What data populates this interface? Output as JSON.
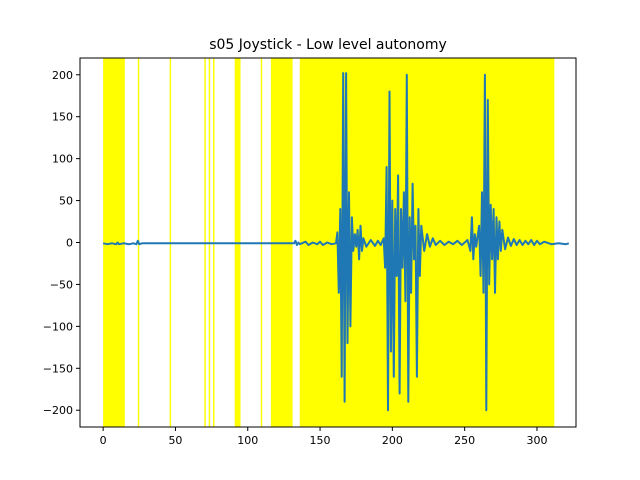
{
  "chart_data": {
    "type": "line",
    "title": "s05 Joystick - Low level autonomy",
    "xlabel": "",
    "ylabel": "",
    "xlim": [
      -16,
      327
    ],
    "ylim": [
      -220,
      220
    ],
    "x_ticks": [
      0,
      50,
      100,
      150,
      200,
      250,
      300
    ],
    "y_ticks": [
      -200,
      -150,
      -100,
      -50,
      0,
      50,
      100,
      150,
      200
    ],
    "grid": false,
    "legend": "none",
    "colors": {
      "line": "#1f77b4",
      "shade": "#ffff00"
    },
    "highlight_spans": [
      [
        0,
        15
      ],
      [
        24,
        25
      ],
      [
        46,
        47
      ],
      [
        70,
        71
      ],
      [
        73,
        74
      ],
      [
        76,
        77
      ],
      [
        91,
        95
      ],
      [
        109,
        110
      ],
      [
        116,
        131
      ],
      [
        136,
        312
      ]
    ],
    "series": [
      {
        "values": [
          [
            0,
            -1
          ],
          [
            3,
            -2
          ],
          [
            6,
            -1
          ],
          [
            9,
            -2
          ],
          [
            10,
            0
          ],
          [
            11,
            -2
          ],
          [
            14,
            -1
          ],
          [
            18,
            -2
          ],
          [
            21,
            -1
          ],
          [
            23,
            -2
          ],
          [
            24,
            2
          ],
          [
            25,
            -2
          ],
          [
            27,
            -1
          ],
          [
            40,
            -1
          ],
          [
            60,
            -1
          ],
          [
            80,
            -1
          ],
          [
            100,
            -1
          ],
          [
            120,
            -1
          ],
          [
            132,
            -1
          ],
          [
            133,
            2
          ],
          [
            134,
            -3
          ],
          [
            135,
            0
          ],
          [
            136,
            -2
          ],
          [
            140,
            1
          ],
          [
            142,
            -3
          ],
          [
            145,
            0
          ],
          [
            148,
            -2
          ],
          [
            150,
            1
          ],
          [
            152,
            -3
          ],
          [
            155,
            0
          ],
          [
            158,
            -2
          ],
          [
            161,
            -1
          ],
          [
            162,
            12
          ],
          [
            163,
            -60
          ],
          [
            164,
            40
          ],
          [
            165,
            -160
          ],
          [
            166,
            202
          ],
          [
            167,
            -190
          ],
          [
            168,
            202
          ],
          [
            169,
            -120
          ],
          [
            170,
            60
          ],
          [
            171,
            -100
          ],
          [
            172,
            30
          ],
          [
            173,
            -10
          ],
          [
            174,
            10
          ],
          [
            175,
            -5
          ],
          [
            176,
            15
          ],
          [
            177,
            -20
          ],
          [
            178,
            20
          ],
          [
            179,
            -10
          ],
          [
            180,
            5
          ],
          [
            182,
            -5
          ],
          [
            185,
            3
          ],
          [
            188,
            -4
          ],
          [
            190,
            2
          ],
          [
            192,
            -3
          ],
          [
            194,
            5
          ],
          [
            195,
            -30
          ],
          [
            196,
            90
          ],
          [
            197,
            -200
          ],
          [
            198,
            180
          ],
          [
            199,
            -130
          ],
          [
            200,
            50
          ],
          [
            201,
            -160
          ],
          [
            202,
            40
          ],
          [
            203,
            -40
          ],
          [
            204,
            80
          ],
          [
            205,
            -180
          ],
          [
            206,
            40
          ],
          [
            207,
            -30
          ],
          [
            208,
            60
          ],
          [
            209,
            -70
          ],
          [
            210,
            200
          ],
          [
            211,
            -190
          ],
          [
            212,
            30
          ],
          [
            213,
            -60
          ],
          [
            214,
            70
          ],
          [
            215,
            -20
          ],
          [
            216,
            20
          ],
          [
            217,
            -160
          ],
          [
            218,
            40
          ],
          [
            219,
            -40
          ],
          [
            220,
            20
          ],
          [
            222,
            -10
          ],
          [
            224,
            10
          ],
          [
            226,
            -5
          ],
          [
            228,
            5
          ],
          [
            230,
            -3
          ],
          [
            233,
            2
          ],
          [
            236,
            -3
          ],
          [
            239,
            1
          ],
          [
            242,
            -2
          ],
          [
            245,
            2
          ],
          [
            248,
            -3
          ],
          [
            252,
            3
          ],
          [
            254,
            -10
          ],
          [
            255,
            30
          ],
          [
            256,
            -20
          ],
          [
            257,
            10
          ],
          [
            258,
            -5
          ],
          [
            260,
            20
          ],
          [
            261,
            -40
          ],
          [
            262,
            60
          ],
          [
            263,
            -60
          ],
          [
            264,
            200
          ],
          [
            265,
            -200
          ],
          [
            266,
            170
          ],
          [
            267,
            -50
          ],
          [
            268,
            45
          ],
          [
            269,
            -20
          ],
          [
            270,
            40
          ],
          [
            271,
            -60
          ],
          [
            272,
            30
          ],
          [
            273,
            -20
          ],
          [
            274,
            25
          ],
          [
            275,
            -10
          ],
          [
            276,
            15
          ],
          [
            278,
            -8
          ],
          [
            280,
            6
          ],
          [
            282,
            -4
          ],
          [
            284,
            4
          ],
          [
            286,
            -3
          ],
          [
            288,
            3
          ],
          [
            290,
            -3
          ],
          [
            292,
            2
          ],
          [
            294,
            -2
          ],
          [
            296,
            3
          ],
          [
            298,
            -3
          ],
          [
            300,
            2
          ],
          [
            302,
            -2
          ],
          [
            305,
            1
          ],
          [
            310,
            -2
          ],
          [
            315,
            -1
          ],
          [
            320,
            -2
          ],
          [
            322,
            -1
          ]
        ]
      }
    ]
  }
}
